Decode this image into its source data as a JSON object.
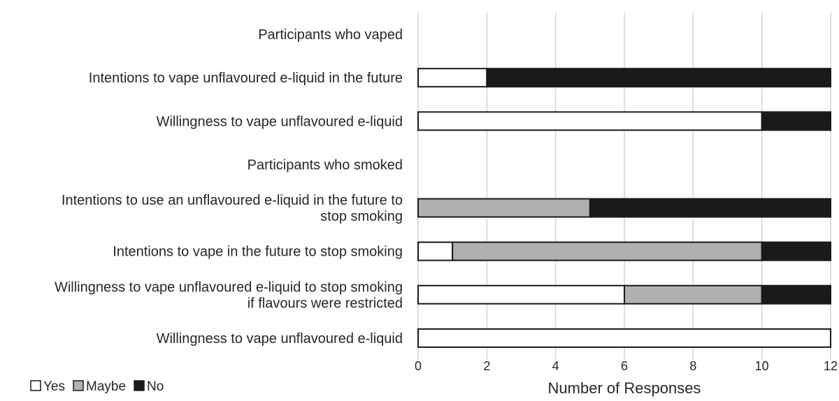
{
  "chart_data": {
    "type": "bar",
    "orientation": "horizontal",
    "stacked": true,
    "categories": [
      "Participants who vaped",
      "Intentions to vape unflavoured e-liquid in the future",
      "Willingness to vape unflavoured e-liquid",
      "Participants who smoked",
      "Intentions to use an unflavoured e-liquid in the future to stop smoking",
      "Intentions to vape in the future to stop smoking",
      "Willingness to vape unflavoured e-liquid to stop smoking if flavours were restricted",
      "Willingness to vape unflavoured e-liquid"
    ],
    "category_lines": [
      [
        "Participants who vaped"
      ],
      [
        "Intentions to vape unflavoured e-liquid in the future"
      ],
      [
        "Willingness to vape unflavoured e-liquid"
      ],
      [
        "Participants who smoked"
      ],
      [
        "Intentions to use an unflavoured e-liquid in the future to",
        "stop smoking"
      ],
      [
        "Intentions to vape in the future to stop smoking"
      ],
      [
        "Willingness to vape unflavoured e-liquid to stop smoking",
        "if flavours were restricted"
      ],
      [
        "Willingness to vape unflavoured e-liquid"
      ]
    ],
    "series": [
      {
        "name": "Yes",
        "color": "#ffffff",
        "values": [
          null,
          2,
          10,
          null,
          0,
          1,
          6,
          12
        ]
      },
      {
        "name": "Maybe",
        "color": "#b0b0b0",
        "values": [
          null,
          0,
          0,
          null,
          5,
          9,
          4,
          0
        ]
      },
      {
        "name": "No",
        "color": "#1a1a1a",
        "values": [
          null,
          10,
          2,
          null,
          7,
          2,
          2,
          0
        ]
      }
    ],
    "xlabel": "Number of Responses",
    "ylabel": "",
    "xlim": [
      0,
      12
    ],
    "xticks": [
      0,
      2,
      4,
      6,
      8,
      10,
      12
    ],
    "grid": true,
    "legend_position": "bottom-left"
  }
}
